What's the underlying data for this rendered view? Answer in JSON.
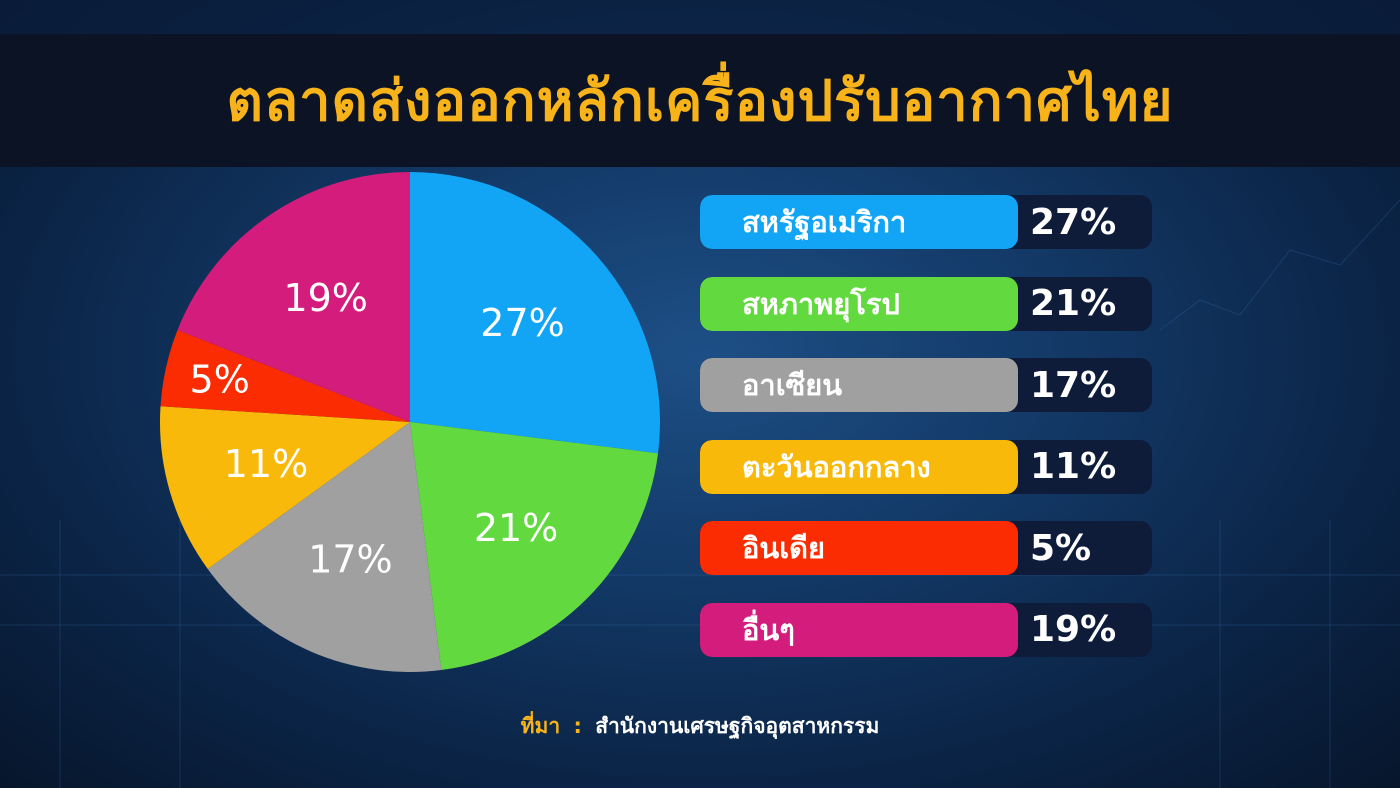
{
  "title": "ตลาดส่งออกหลักเครื่องปรับอากาศไทย",
  "chart_data": {
    "type": "pie",
    "title": "ตลาดส่งออกหลักเครื่องปรับอากาศไทย",
    "slices": [
      {
        "label": "สหรัฐอเมริกา",
        "value": 27,
        "display": "27%",
        "color": "#12a5f5"
      },
      {
        "label": "สหภาพยุโรป",
        "value": 21,
        "display": "21%",
        "color": "#62d93f"
      },
      {
        "label": "อาเซียน",
        "value": 17,
        "display": "17%",
        "color": "#a0a0a0"
      },
      {
        "label": "ตะวันออกกลาง",
        "value": 11,
        "display": "11%",
        "color": "#f8b90a"
      },
      {
        "label": "อินเดีย",
        "value": 5,
        "display": "5%",
        "color": "#fb2c02"
      },
      {
        "label": "อื่นๆ",
        "value": 19,
        "display": "19%",
        "color": "#d41c7c"
      }
    ]
  },
  "source": {
    "label": "ที่มา",
    "separator": ":",
    "text": "สำนักงานเศรษฐกิจอุตสาหกรรม"
  }
}
